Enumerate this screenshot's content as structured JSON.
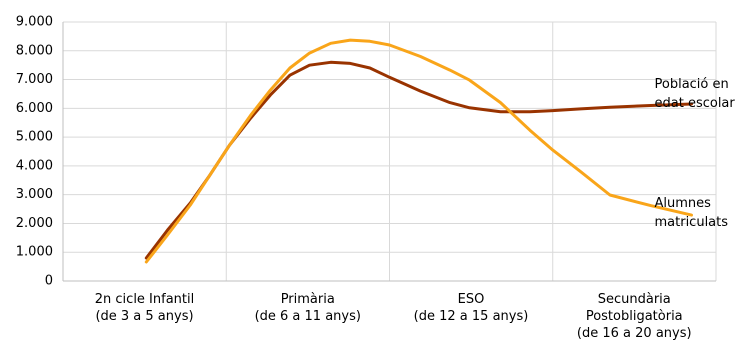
{
  "chart_data": {
    "type": "line",
    "categories": [
      "2n cicle Infantil\n(de 3 a 5 anys)",
      "Primària\n(de 6 a 11 anys)",
      "ESO\n(de 12 a 15 anys)",
      "Secundària\nPostobligatòria\n(de 16 a 20 anys)"
    ],
    "x": [
      0.51,
      0.64,
      0.78,
      0.9,
      1.02,
      1.15,
      1.27,
      1.39,
      1.51,
      1.64,
      1.76,
      1.88,
      2.0,
      2.19,
      2.37,
      2.49,
      2.68,
      2.86,
      3.0,
      3.17,
      3.35,
      3.6,
      3.85
    ],
    "xlim": [
      0,
      4
    ],
    "series": [
      {
        "name": "Població en\nedat escolar",
        "color": "#993300",
        "values": [
          800,
          1770,
          2710,
          3680,
          4720,
          5660,
          6460,
          7150,
          7500,
          7600,
          7560,
          7400,
          7080,
          6600,
          6200,
          6020,
          5880,
          5880,
          5920,
          5980,
          6040,
          6100,
          6150
        ]
      },
      {
        "name": "Alumnes\nmatriculats",
        "color": "#f9a51a",
        "values": [
          660,
          1600,
          2640,
          3680,
          4720,
          5760,
          6630,
          7400,
          7920,
          8260,
          8370,
          8330,
          8200,
          7800,
          7330,
          6980,
          6200,
          5240,
          4550,
          3800,
          2990,
          2620,
          2290
        ]
      }
    ],
    "ylim": [
      0,
      9000
    ],
    "yticks": [
      0,
      {
        "value": 1000,
        "label": "1.000"
      },
      {
        "value": 2000,
        "label": "2.000"
      },
      {
        "value": 3000,
        "label": "3.000"
      },
      {
        "value": 4000,
        "label": "4.000"
      },
      {
        "value": 5000,
        "label": "5.000"
      },
      {
        "value": 6000,
        "label": "6.000"
      },
      {
        "value": 7000,
        "label": "7.000"
      },
      {
        "value": 8000,
        "label": "8.000"
      },
      {
        "value": 9000,
        "label": "9.000"
      }
    ],
    "grid": true
  }
}
